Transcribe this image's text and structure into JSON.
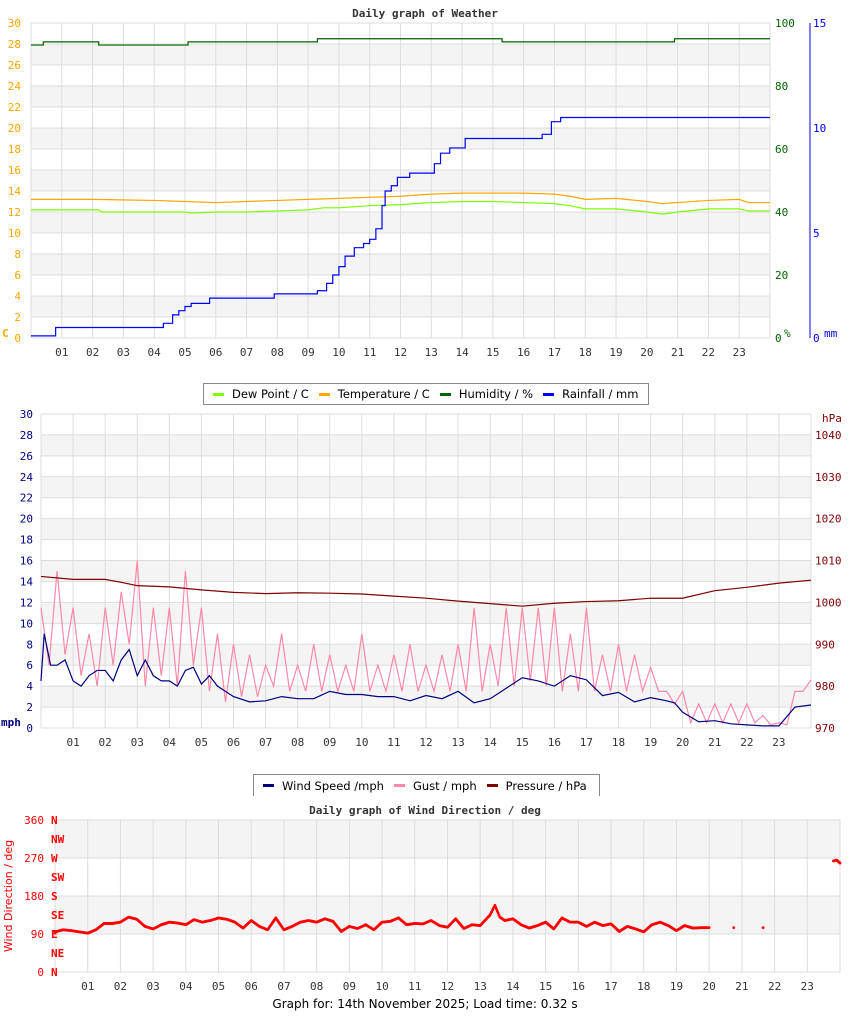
{
  "footer": "Graph for: 14th November 2025; Load time: 0.32 s",
  "chart_data": [
    {
      "type": "line",
      "title": "Daily graph of Weather",
      "x_ticks": [
        "01",
        "02",
        "03",
        "04",
        "05",
        "06",
        "07",
        "08",
        "09",
        "10",
        "11",
        "12",
        "13",
        "14",
        "15",
        "16",
        "17",
        "18",
        "19",
        "20",
        "21",
        "22",
        "23"
      ],
      "xlim": [
        0,
        24
      ],
      "grid": true,
      "axes": {
        "left": {
          "unit": "C",
          "range": [
            0,
            30
          ],
          "ticks": [
            0,
            2,
            4,
            6,
            8,
            10,
            12,
            14,
            16,
            18,
            20,
            22,
            24,
            26,
            28,
            30
          ],
          "color": "#ffa500"
        },
        "right1": {
          "unit": "%",
          "range": [
            0,
            100
          ],
          "ticks": [
            0,
            20,
            40,
            60,
            80,
            100
          ],
          "color": "#006400"
        },
        "right2": {
          "unit": "mm",
          "range": [
            0,
            15
          ],
          "ticks": [
            0,
            5,
            10,
            15
          ],
          "color": "#0000ff"
        }
      },
      "legend": {
        "placement": "bottom",
        "entries": [
          "Dew Point / C",
          "Temperature / C",
          "Humidity / %",
          "Rainfall / mm"
        ]
      },
      "series": [
        {
          "name": "Dew Point / C",
          "axis": "left",
          "color": "#7cfc00",
          "step": false,
          "x": [
            0,
            2.2,
            2.3,
            5,
            5.2,
            6,
            7,
            8,
            9,
            9.5,
            10,
            11,
            12,
            13,
            14,
            15,
            16,
            17,
            17.5,
            18,
            19,
            20,
            20.5,
            21,
            22,
            23,
            23.3,
            24
          ],
          "y": [
            12.2,
            12.2,
            12.0,
            12.0,
            11.9,
            12.0,
            12.0,
            12.1,
            12.2,
            12.4,
            12.4,
            12.6,
            12.7,
            12.9,
            13.0,
            13.0,
            12.9,
            12.8,
            12.6,
            12.3,
            12.3,
            12.0,
            11.8,
            12.0,
            12.3,
            12.3,
            12.1,
            12.1
          ]
        },
        {
          "name": "Temperature / C",
          "axis": "left",
          "color": "#ffa500",
          "step": false,
          "x": [
            0,
            2,
            4,
            5,
            6,
            7,
            8,
            9,
            10,
            11,
            12,
            13,
            14,
            15,
            16,
            17,
            17.5,
            18,
            19,
            20,
            20.5,
            21,
            22,
            23,
            23.3,
            24
          ],
          "y": [
            13.2,
            13.2,
            13.1,
            13.0,
            12.9,
            13.0,
            13.1,
            13.2,
            13.3,
            13.4,
            13.5,
            13.7,
            13.8,
            13.8,
            13.8,
            13.7,
            13.5,
            13.2,
            13.3,
            13.0,
            12.8,
            12.9,
            13.1,
            13.2,
            12.9,
            12.9
          ]
        },
        {
          "name": "Humidity / %",
          "axis": "right1",
          "color": "#006400",
          "step": true,
          "x": [
            0,
            0.4,
            2.2,
            5.1,
            9.3,
            15.3,
            20.9,
            24
          ],
          "y": [
            93,
            94,
            93,
            94,
            95,
            94,
            95,
            95
          ]
        },
        {
          "name": "Rainfall / mm",
          "axis": "right2",
          "color": "#0000ff",
          "step": true,
          "x": [
            0,
            0.8,
            4.3,
            4.6,
            4.8,
            5.0,
            5.2,
            5.8,
            7.9,
            9.3,
            9.6,
            9.8,
            10.0,
            10.2,
            10.5,
            10.8,
            11.0,
            11.2,
            11.4,
            11.5,
            11.7,
            11.9,
            12.3,
            13.1,
            13.3,
            13.6,
            14.1,
            16.6,
            16.9,
            17.2,
            24
          ],
          "y": [
            0.1,
            0.5,
            0.7,
            1.1,
            1.3,
            1.5,
            1.65,
            1.9,
            2.1,
            2.25,
            2.6,
            3.0,
            3.4,
            3.9,
            4.3,
            4.5,
            4.7,
            5.2,
            6.3,
            7.0,
            7.25,
            7.65,
            7.85,
            8.3,
            8.8,
            9.05,
            9.5,
            9.7,
            10.3,
            10.5,
            10.5
          ]
        }
      ]
    },
    {
      "type": "line",
      "title": "",
      "x_ticks": [
        "01",
        "02",
        "03",
        "04",
        "05",
        "06",
        "07",
        "08",
        "09",
        "10",
        "11",
        "12",
        "13",
        "14",
        "15",
        "16",
        "17",
        "18",
        "19",
        "20",
        "21",
        "22",
        "23"
      ],
      "xlim": [
        0,
        24
      ],
      "grid": true,
      "axes": {
        "left": {
          "unit": "mph",
          "range": [
            0,
            30
          ],
          "ticks": [
            0,
            2,
            4,
            6,
            8,
            10,
            12,
            14,
            16,
            18,
            20,
            22,
            24,
            26,
            28,
            30
          ],
          "color": "#000080"
        },
        "right": {
          "unit": "hPa",
          "range": [
            970,
            1045
          ],
          "ticks": [
            970,
            980,
            990,
            1000,
            1010,
            1020,
            1030,
            1040
          ],
          "color": "#800000"
        }
      },
      "legend": {
        "placement": "bottom",
        "entries": [
          "Wind Speed /mph",
          "Gust / mph",
          "Pressure / hPa"
        ]
      },
      "series": [
        {
          "name": "Gust / mph",
          "axis": "left",
          "color": "#ff88aa",
          "x": [
            0,
            0.25,
            0.5,
            0.75,
            1,
            1.25,
            1.5,
            1.75,
            2,
            2.25,
            2.5,
            2.75,
            3,
            3.25,
            3.5,
            3.75,
            4,
            4.25,
            4.5,
            4.75,
            5,
            5.25,
            5.5,
            5.75,
            6,
            6.25,
            6.5,
            6.75,
            7,
            7.25,
            7.5,
            7.75,
            8,
            8.25,
            8.5,
            8.75,
            9,
            9.25,
            9.5,
            9.75,
            10,
            10.25,
            10.5,
            10.75,
            11,
            11.25,
            11.5,
            11.75,
            12,
            12.25,
            12.5,
            12.75,
            13,
            13.25,
            13.5,
            13.75,
            14,
            14.25,
            14.5,
            14.75,
            15,
            15.25,
            15.5,
            15.75,
            16,
            16.25,
            16.5,
            16.75,
            17,
            17.25,
            17.5,
            17.75,
            18,
            18.25,
            18.5,
            18.75,
            19,
            19.25,
            19.5,
            19.75,
            20,
            20.25,
            20.5,
            20.75,
            21,
            21.25,
            21.5,
            21.75,
            22,
            22.25,
            22.5,
            22.75,
            23,
            23.25,
            23.5,
            23.75,
            24
          ],
          "y": [
            11.5,
            6,
            15,
            7,
            11.5,
            5,
            9,
            4,
            11.5,
            6,
            13,
            8,
            16,
            4,
            11.5,
            5,
            11.5,
            4,
            15,
            6,
            11.5,
            3.5,
            9,
            2.5,
            8,
            3,
            7,
            3,
            6,
            4,
            9,
            3.5,
            6,
            3.5,
            8,
            3.5,
            7,
            3.5,
            6,
            3.5,
            9,
            3.5,
            6,
            3.5,
            7,
            3.5,
            8,
            3.5,
            6,
            3.5,
            7,
            3.5,
            8,
            3.5,
            11.5,
            3.5,
            8,
            4,
            11.5,
            4,
            11.5,
            4.5,
            11.5,
            4,
            11.5,
            3.5,
            9,
            3.5,
            11.5,
            3.5,
            7,
            3.5,
            8,
            3.5,
            7,
            3.5,
            5.8,
            3.5,
            3.5,
            2.3,
            3.5,
            0.5,
            2.3,
            0.5,
            2.3,
            0.5,
            2.3,
            0.5,
            2.3,
            0.5,
            1.2,
            0.3,
            0.5,
            0.3,
            3.5,
            3.5,
            4.6
          ]
        },
        {
          "name": "Wind Speed /mph",
          "axis": "left",
          "color": "#000080",
          "x": [
            0,
            0.1,
            0.3,
            0.5,
            0.75,
            1,
            1.25,
            1.5,
            1.75,
            2,
            2.25,
            2.5,
            2.75,
            3,
            3.25,
            3.5,
            3.75,
            4,
            4.25,
            4.5,
            4.75,
            5,
            5.25,
            5.5,
            5.75,
            6,
            6.5,
            7,
            7.5,
            8,
            8.5,
            9,
            9.5,
            10,
            10.5,
            11,
            11.5,
            12,
            12.5,
            13,
            13.5,
            14,
            14.5,
            15,
            15.5,
            16,
            16.5,
            17,
            17.5,
            18,
            18.5,
            19,
            19.5,
            19.75,
            20,
            20.5,
            21,
            21.5,
            22,
            22.5,
            23,
            23.5,
            24
          ],
          "y": [
            4.5,
            9,
            6,
            6,
            6.5,
            4.5,
            4,
            5,
            5.5,
            5.5,
            4.5,
            6.5,
            7.5,
            5,
            6.5,
            5,
            4.5,
            4.5,
            4,
            5.5,
            5.8,
            4.2,
            5,
            4,
            3.5,
            3,
            2.5,
            2.6,
            3,
            2.8,
            2.8,
            3.5,
            3.2,
            3.2,
            3,
            3,
            2.6,
            3.1,
            2.8,
            3.5,
            2.4,
            2.8,
            3.8,
            4.8,
            4.5,
            4,
            5,
            4.6,
            3.1,
            3.4,
            2.5,
            2.9,
            2.6,
            2.4,
            1.5,
            0.6,
            0.7,
            0.4,
            0.3,
            0.2,
            0.2,
            2.0,
            2.2
          ]
        },
        {
          "name": "Pressure / hPa",
          "axis": "right",
          "color": "#800000",
          "x": [
            0,
            1,
            2,
            2.5,
            3,
            4,
            5,
            6,
            7,
            8,
            9,
            10,
            11,
            12,
            13,
            14,
            15,
            16,
            17,
            18,
            19,
            20,
            21,
            22,
            23,
            24
          ],
          "y": [
            1006.2,
            1005.5,
            1005.5,
            1004.8,
            1004,
            1003.7,
            1003,
            1002.4,
            1002.1,
            1002.3,
            1002.2,
            1002,
            1001.5,
            1001,
            1000.3,
            999.7,
            999.1,
            999.8,
            1000.2,
            1000.4,
            1001,
            1001,
            1002.8,
            1003.6,
            1004.6,
            1005.3
          ]
        }
      ]
    },
    {
      "type": "scatter",
      "title": "Daily graph of Wind Direction / deg",
      "ylabel": "Wind Direction / deg",
      "x_ticks": [
        "01",
        "02",
        "03",
        "04",
        "05",
        "06",
        "07",
        "08",
        "09",
        "10",
        "11",
        "12",
        "13",
        "14",
        "15",
        "16",
        "17",
        "18",
        "19",
        "20",
        "21",
        "22",
        "23"
      ],
      "xlim": [
        0,
        24
      ],
      "ylim": [
        0,
        360
      ],
      "y_ticks": [
        0,
        90,
        180,
        270,
        360
      ],
      "compass_labels": [
        "N",
        "NE",
        "E",
        "SE",
        "S",
        "SW",
        "W",
        "NW",
        "N"
      ],
      "grid": true,
      "color": "#ff0000",
      "x": [
        0,
        0.25,
        0.5,
        0.75,
        1,
        1.25,
        1.5,
        1.75,
        2,
        2.25,
        2.5,
        2.75,
        3,
        3.25,
        3.5,
        3.75,
        4,
        4.25,
        4.5,
        4.75,
        5,
        5.25,
        5.5,
        5.75,
        6,
        6.25,
        6.5,
        6.75,
        7,
        7.25,
        7.5,
        7.75,
        8,
        8.25,
        8.5,
        8.75,
        9,
        9.25,
        9.5,
        9.75,
        10,
        10.25,
        10.5,
        10.75,
        11,
        11.25,
        11.5,
        11.75,
        12,
        12.25,
        12.5,
        12.75,
        13,
        13.3,
        13.45,
        13.6,
        13.75,
        14,
        14.25,
        14.5,
        14.75,
        15,
        15.25,
        15.5,
        15.75,
        16,
        16.25,
        16.5,
        16.75,
        17,
        17.25,
        17.5,
        17.75,
        18,
        18.25,
        18.5,
        18.75,
        19,
        19.25,
        19.5,
        19.75,
        20,
        20.75,
        21.65,
        23.8,
        23.9,
        24
      ],
      "y": [
        95,
        100,
        98,
        95,
        92,
        100,
        115,
        115,
        118,
        130,
        125,
        108,
        102,
        112,
        118,
        116,
        112,
        124,
        118,
        122,
        128,
        125,
        118,
        104,
        122,
        108,
        100,
        128,
        100,
        108,
        118,
        122,
        118,
        126,
        120,
        96,
        108,
        103,
        112,
        100,
        118,
        120,
        128,
        112,
        115,
        114,
        122,
        110,
        106,
        126,
        103,
        112,
        110,
        135,
        158,
        130,
        122,
        126,
        112,
        104,
        110,
        118,
        102,
        128,
        118,
        118,
        108,
        118,
        110,
        114,
        96,
        108,
        102,
        95,
        112,
        118,
        110,
        98,
        110,
        104,
        105,
        105,
        105,
        105,
        263,
        265,
        258
      ]
    }
  ]
}
